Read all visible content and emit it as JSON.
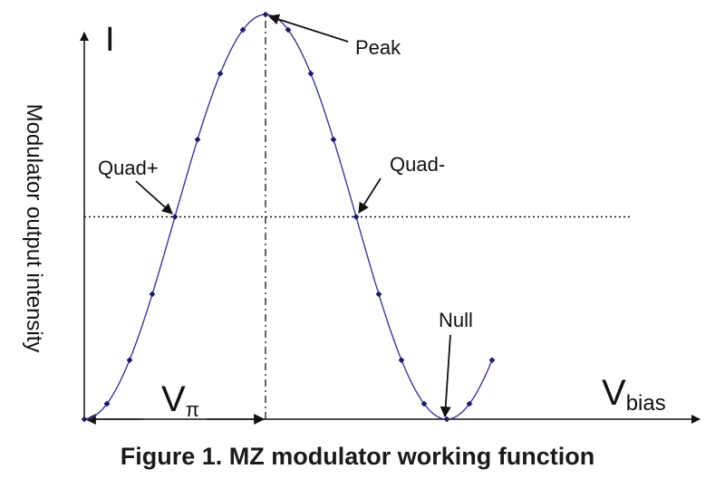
{
  "chart_data": {
    "type": "line",
    "title": "",
    "xlabel": "V",
    "xlabel_sub": "bias",
    "ylabel": "Modulator output intensity",
    "yaxis_symbol": "I",
    "grid": false,
    "series": [
      {
        "x": [
          0,
          0.125,
          0.25,
          0.375,
          0.5,
          0.625,
          0.75,
          0.875,
          1.0,
          1.125,
          1.25,
          1.375,
          1.5,
          1.625,
          1.75,
          1.875,
          2.0,
          2.125,
          2.25
        ],
        "values": [
          0.0,
          0.038,
          0.146,
          0.309,
          0.5,
          0.691,
          0.854,
          0.962,
          1.0,
          0.962,
          0.854,
          0.691,
          0.5,
          0.309,
          0.146,
          0.038,
          0.0,
          0.038,
          0.146
        ]
      }
    ],
    "xlim": [
      0,
      2.75
    ],
    "ylim": [
      0,
      1
    ],
    "quadrature_level": 0.5,
    "vpi_marker": "V",
    "vpi_marker_sub": "π",
    "annotations": {
      "peak": "Peak",
      "quad_plus": "Quad+",
      "quad_minus": "Quad-",
      "null": "Null"
    }
  },
  "caption": "Figure 1. MZ modulator working function",
  "colors": {
    "curve": "#3a3a8c",
    "marker": "#1a1a66",
    "axis": "#111111"
  }
}
